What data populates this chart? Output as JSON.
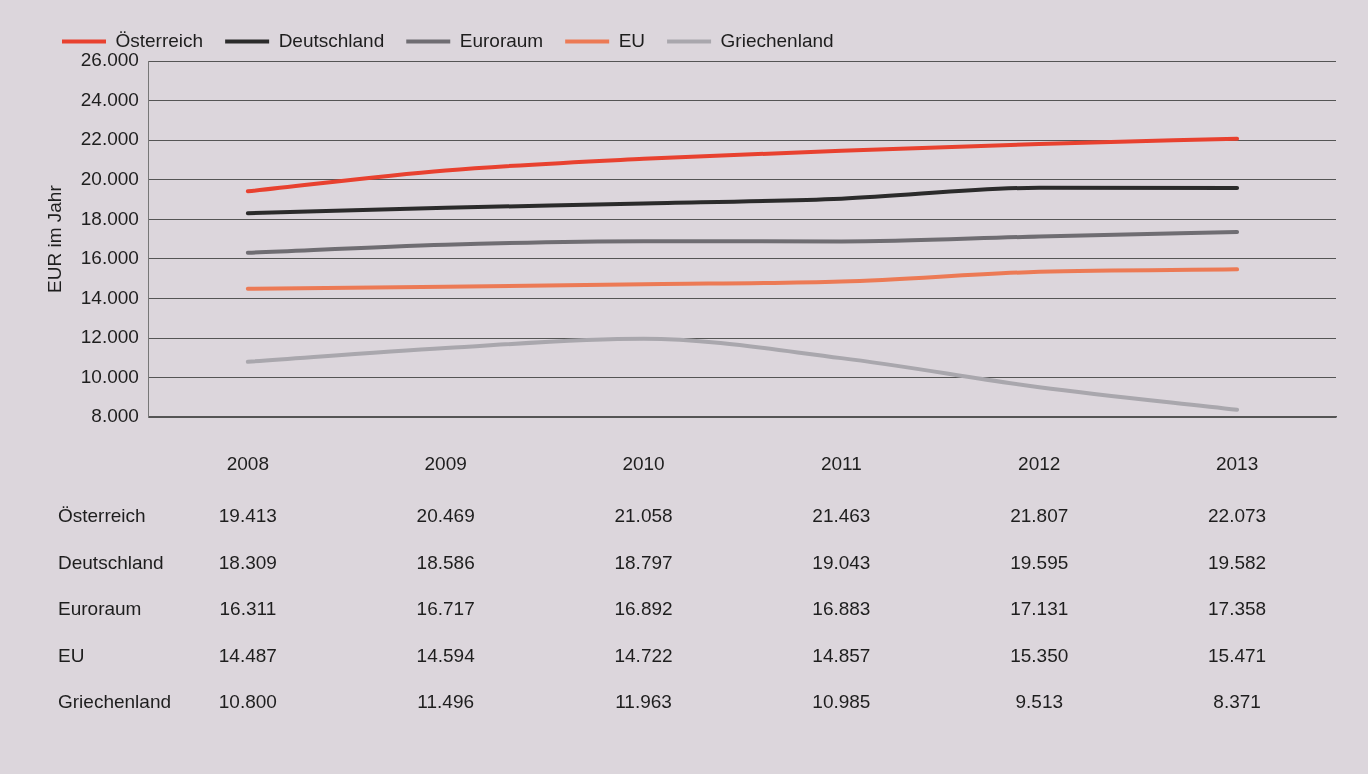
{
  "chart_data": {
    "type": "line",
    "ylabel": "EUR im Jahr",
    "categories": [
      "2008",
      "2009",
      "2010",
      "2011",
      "2012",
      "2013"
    ],
    "ylim": [
      8000,
      26000
    ],
    "yticks": [
      {
        "value": 8000,
        "label": "8.000"
      },
      {
        "value": 10000,
        "label": "10.000"
      },
      {
        "value": 12000,
        "label": "12.000"
      },
      {
        "value": 14000,
        "label": "14.000"
      },
      {
        "value": 16000,
        "label": "16.000"
      },
      {
        "value": 18000,
        "label": "18.000"
      },
      {
        "value": 20000,
        "label": "20.000"
      },
      {
        "value": 22000,
        "label": "22.000"
      },
      {
        "value": 24000,
        "label": "24.000"
      },
      {
        "value": 26000,
        "label": "26.000"
      }
    ],
    "grid": "y",
    "legend": "top",
    "marker": "none",
    "line_style": "solid",
    "series": [
      {
        "name": "Österreich",
        "color": "#e8412f",
        "values": [
          19413,
          20469,
          21058,
          21463,
          21807,
          22073
        ],
        "value_labels": [
          "19.413",
          "20.469",
          "21.058",
          "21.463",
          "21.807",
          "22.073"
        ]
      },
      {
        "name": "Deutschland",
        "color": "#2b2b2b",
        "values": [
          18309,
          18586,
          18797,
          19043,
          19595,
          19582
        ],
        "value_labels": [
          "18.309",
          "18.586",
          "18.797",
          "19.043",
          "19.595",
          "19.582"
        ]
      },
      {
        "name": "Euroraum",
        "color": "#6f6d72",
        "values": [
          16311,
          16717,
          16892,
          16883,
          17131,
          17358
        ],
        "value_labels": [
          "16.311",
          "16.717",
          "16.892",
          "16.883",
          "17.131",
          "17.358"
        ]
      },
      {
        "name": "EU",
        "color": "#ec7a55",
        "values": [
          14487,
          14594,
          14722,
          14857,
          15350,
          15471
        ],
        "value_labels": [
          "14.487",
          "14.594",
          "14.722",
          "14.857",
          "15.350",
          "15.471"
        ]
      },
      {
        "name": "Griechenland",
        "color": "#a9a7ad",
        "values": [
          10800,
          11496,
          11963,
          10985,
          9513,
          8371
        ],
        "value_labels": [
          "10.800",
          "11.496",
          "11.963",
          "10.985",
          "9.513",
          "8.371"
        ]
      }
    ]
  }
}
